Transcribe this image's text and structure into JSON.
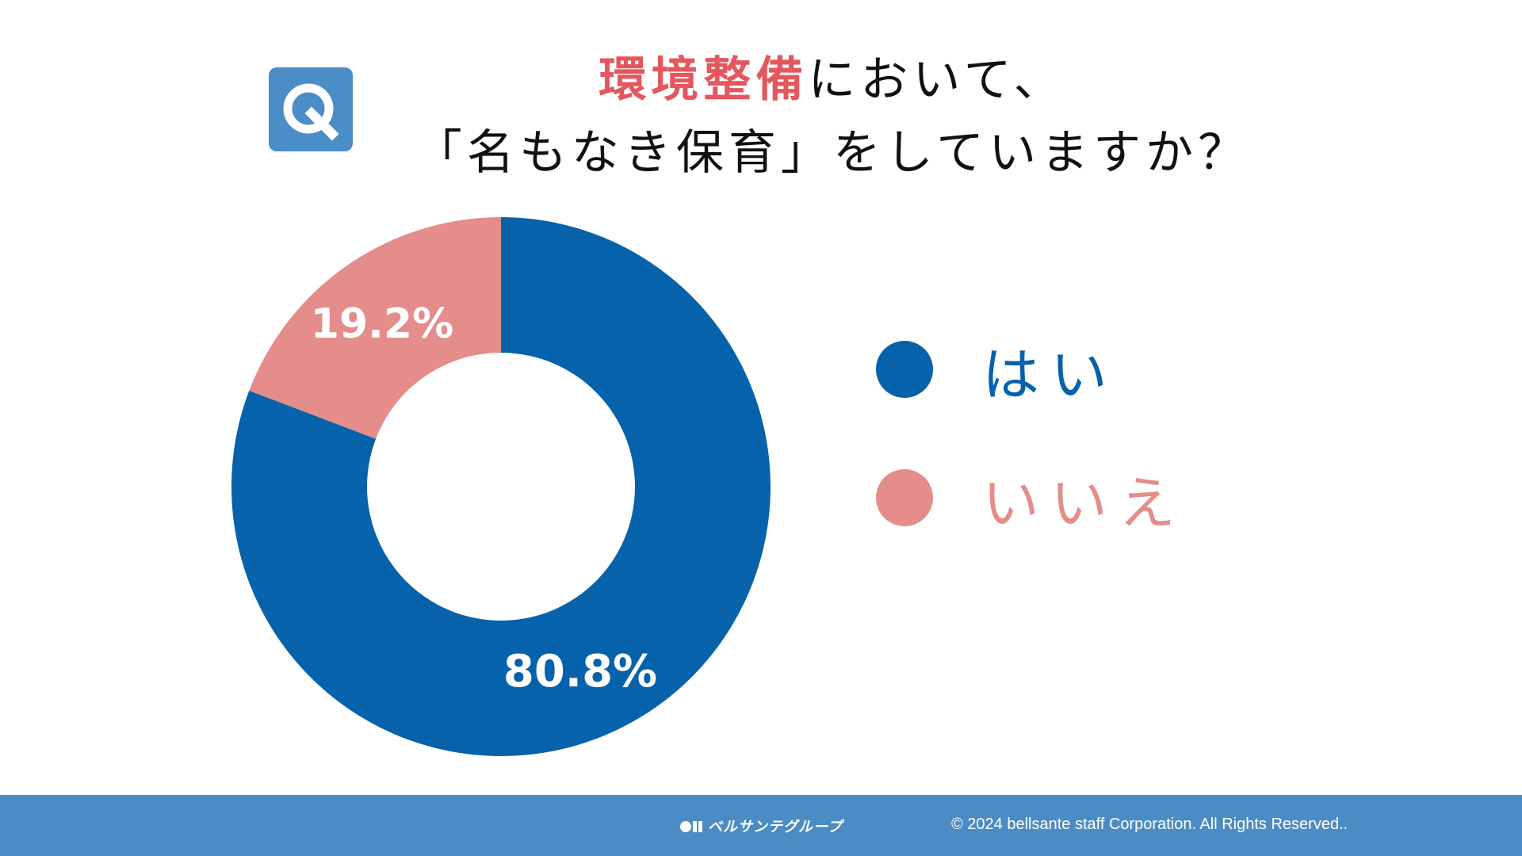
{
  "question_badge": {
    "letter": "Q",
    "color": "#4b8dc7"
  },
  "title": {
    "line1_accent": "環境整備",
    "line1_rest": "において、",
    "line2": "「名もなき保育」をしていますか？",
    "accent_color": "#e5575e"
  },
  "chart_data": {
    "type": "pie",
    "style": "donut",
    "title": "環境整備において、「名もなき保育」をしていますか？",
    "labels": [
      "はい",
      "いいえ"
    ],
    "values": [
      80.8,
      19.2
    ],
    "value_labels": [
      "80.8%",
      "19.2%"
    ],
    "colors": [
      "#0662ab",
      "#e58d8b"
    ],
    "start_angle": "12 o'clock",
    "direction": "clockwise",
    "legend": "right"
  },
  "legend": {
    "items": [
      {
        "label": "はい",
        "color": "#0662ab"
      },
      {
        "label": "いいえ",
        "color": "#e58d8b"
      }
    ]
  },
  "footer": {
    "logo_text": "ベルサンテグループ",
    "copyright": "© 2024 bellsante staff Corporation. All Rights Reserved..",
    "background": "#4c8cc4"
  }
}
